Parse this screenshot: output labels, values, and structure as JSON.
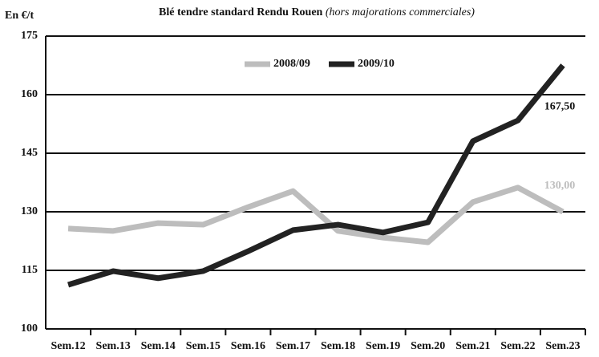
{
  "chart_data": {
    "type": "line",
    "title": "Blé tendre standard Rendu Rouen",
    "subtitle": "(hors majorations commerciales)",
    "y_label": "En €/t",
    "categories": [
      "Sem.12",
      "Sem.13",
      "Sem.14",
      "Sem.15",
      "Sem.16",
      "Sem.17",
      "Sem.18",
      "Sem.19",
      "Sem.20",
      "Sem.21",
      "Sem.22",
      "Sem.23"
    ],
    "series": [
      {
        "name": "2008/09",
        "color": "#bdbdbd",
        "values": [
          125.7,
          125.1,
          127.1,
          126.7,
          131.2,
          135.3,
          125.1,
          123.4,
          122.2,
          132.5,
          136.2,
          130
        ],
        "value_labels": [
          null,
          null,
          null,
          null,
          null,
          null,
          null,
          null,
          null,
          null,
          null,
          "130,00"
        ]
      },
      {
        "name": "2009/10",
        "color": "#222222",
        "values": [
          111.3,
          114.8,
          113,
          114.8,
          119.9,
          125.3,
          126.7,
          124.7,
          127.3,
          148.1,
          153.4,
          167.5
        ],
        "value_labels": [
          null,
          null,
          null,
          null,
          null,
          null,
          null,
          null,
          null,
          null,
          null,
          "167,50"
        ]
      }
    ],
    "ylim": [
      100,
      175
    ],
    "yticks": [
      100,
      115,
      130,
      145,
      160,
      175
    ],
    "grid": true,
    "legend": "top"
  }
}
